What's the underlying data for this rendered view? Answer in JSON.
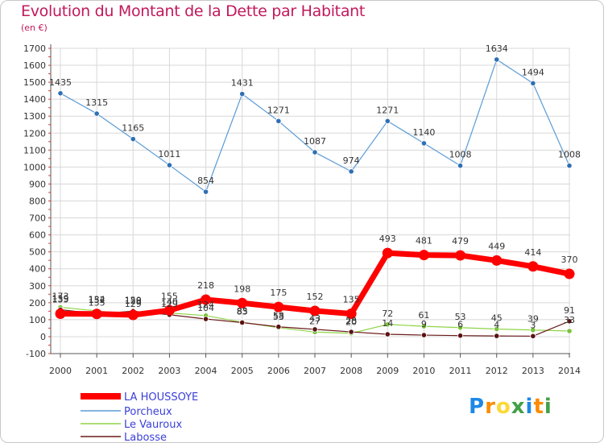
{
  "chart_data": {
    "type": "line",
    "title": "Evolution du Montant de la Dette par Habitant",
    "subtitle": "(en €)",
    "x": [
      "2000",
      "2001",
      "2002",
      "2003",
      "2004",
      "2005",
      "2006",
      "2007",
      "2008",
      "2009",
      "2010",
      "2011",
      "2012",
      "2013",
      "2014"
    ],
    "ylim": [
      -100,
      1700
    ],
    "yticks": [
      -100,
      0,
      100,
      200,
      300,
      400,
      500,
      600,
      700,
      800,
      900,
      1000,
      1100,
      1200,
      1300,
      1400,
      1500,
      1600,
      1700
    ],
    "grid": true,
    "legend_position": "bottom-left",
    "series": [
      {
        "name": "LA HOUSSOYE",
        "color": "#ff0000",
        "values": [
          135,
          134,
          128,
          155,
          218,
          198,
          175,
          152,
          135,
          493,
          481,
          479,
          449,
          414,
          370
        ]
      },
      {
        "name": "Porcheux",
        "color": "#4a90d9",
        "values": [
          1435,
          1315,
          1165,
          1011,
          854,
          1431,
          1271,
          1087,
          974,
          1271,
          1140,
          1008,
          1634,
          1494,
          1008
        ]
      },
      {
        "name": "Le Vauroux",
        "color": "#8fd448",
        "values": [
          173,
          152,
          129,
          140,
          124,
          85,
          53,
          27,
          20,
          72,
          61,
          53,
          45,
          39,
          33
        ]
      },
      {
        "name": "Labosse",
        "color": "#6b1a1a",
        "values": [
          159,
          135,
          150,
          129,
          104,
          83,
          58,
          43,
          28,
          14,
          9,
          6,
          4,
          3,
          91
        ]
      }
    ]
  },
  "logo": {
    "text": "Proxiti",
    "letters": [
      "P",
      "r",
      "o",
      "x",
      "i",
      "t",
      "i"
    ],
    "colors": [
      "#1e88e5",
      "#fb8c00",
      "#fdd835",
      "#43a047",
      "#1e88e5",
      "#fb8c00",
      "#43a047"
    ]
  }
}
